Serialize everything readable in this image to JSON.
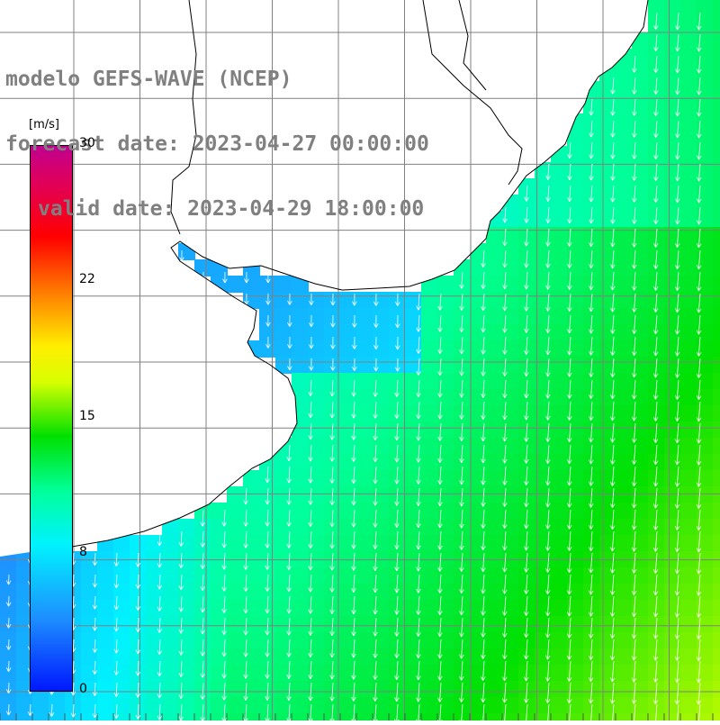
{
  "title": {
    "line1": "modelo GEFS-WAVE (NCEP)",
    "line2": "forecast date: 2023-04-27 00:00:00",
    "line3": "valid date: 2023-04-29 18:00:00"
  },
  "colorbar": {
    "unit": "[m/s]",
    "ticks": [
      "30",
      "22",
      "15",
      "8",
      "0"
    ],
    "tick_values": [
      30,
      22,
      15,
      8,
      0
    ],
    "range": [
      0,
      30
    ],
    "stops": [
      {
        "value": 0,
        "color": "#0018ff"
      },
      {
        "value": 4,
        "color": "#1d8fff"
      },
      {
        "value": 8,
        "color": "#00f2ff"
      },
      {
        "value": 11,
        "color": "#00ff9a"
      },
      {
        "value": 14,
        "color": "#00e000"
      },
      {
        "value": 17,
        "color": "#d8ff00"
      },
      {
        "value": 19,
        "color": "#ffee00"
      },
      {
        "value": 22,
        "color": "#ff7a00"
      },
      {
        "value": 25,
        "color": "#ff0000"
      },
      {
        "value": 28,
        "color": "#e0005a"
      },
      {
        "value": 30,
        "color": "#c00090"
      }
    ]
  },
  "map": {
    "parameter": "wind speed",
    "land_color": "#ffffff",
    "grid_color": "#808080",
    "vector_color": "#ffffff"
  }
}
